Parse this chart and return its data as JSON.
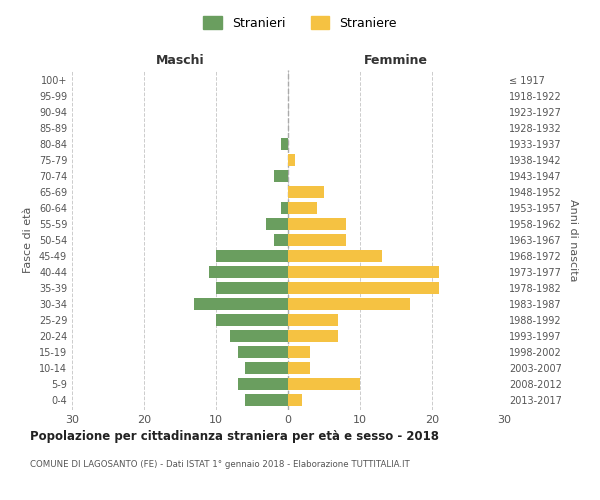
{
  "age_groups": [
    "0-4",
    "5-9",
    "10-14",
    "15-19",
    "20-24",
    "25-29",
    "30-34",
    "35-39",
    "40-44",
    "45-49",
    "50-54",
    "55-59",
    "60-64",
    "65-69",
    "70-74",
    "75-79",
    "80-84",
    "85-89",
    "90-94",
    "95-99",
    "100+"
  ],
  "birth_years": [
    "2013-2017",
    "2008-2012",
    "2003-2007",
    "1998-2002",
    "1993-1997",
    "1988-1992",
    "1983-1987",
    "1978-1982",
    "1973-1977",
    "1968-1972",
    "1963-1967",
    "1958-1962",
    "1953-1957",
    "1948-1952",
    "1943-1947",
    "1938-1942",
    "1933-1937",
    "1928-1932",
    "1923-1927",
    "1918-1922",
    "≤ 1917"
  ],
  "maschi": [
    6,
    7,
    6,
    7,
    8,
    10,
    13,
    10,
    11,
    10,
    2,
    3,
    1,
    0,
    2,
    0,
    1,
    0,
    0,
    0,
    0
  ],
  "femmine": [
    2,
    10,
    3,
    3,
    7,
    7,
    17,
    21,
    21,
    13,
    8,
    8,
    4,
    5,
    0,
    1,
    0,
    0,
    0,
    0,
    0
  ],
  "maschi_color": "#6a9e5f",
  "femmine_color": "#f5c242",
  "background_color": "#ffffff",
  "grid_color": "#cccccc",
  "title": "Popolazione per cittadinanza straniera per età e sesso - 2018",
  "subtitle": "COMUNE DI LAGOSANTO (FE) - Dati ISTAT 1° gennaio 2018 - Elaborazione TUTTITALIA.IT",
  "xlabel_left": "Maschi",
  "xlabel_right": "Femmine",
  "ylabel_left": "Fasce di età",
  "ylabel_right": "Anni di nascita",
  "legend_maschi": "Stranieri",
  "legend_femmine": "Straniere",
  "xlim": 30,
  "bar_height": 0.75
}
